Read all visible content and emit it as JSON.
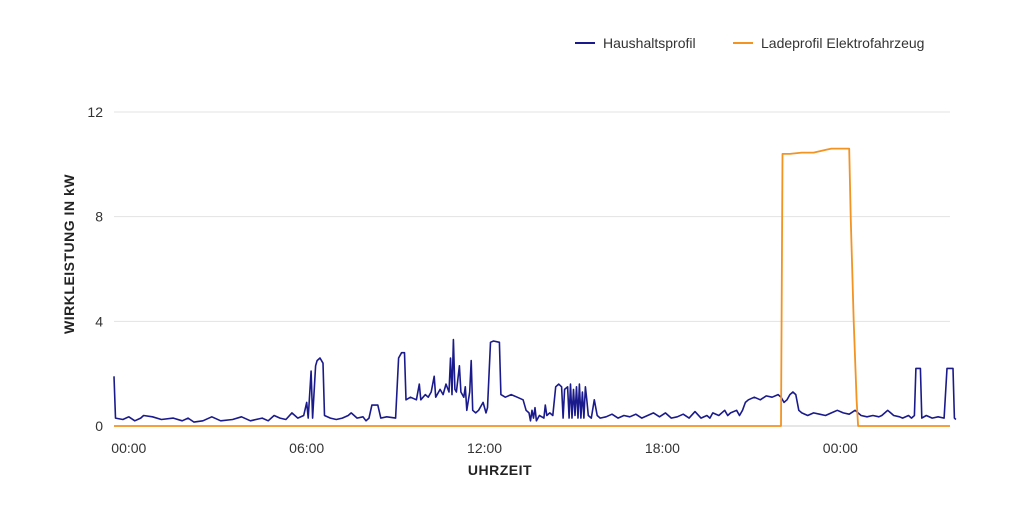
{
  "chart_data": {
    "type": "line",
    "xlabel": "UHRZEIT",
    "ylabel": "WIRKLEISTUNG IN kW",
    "xlim": [
      0,
      28.2
    ],
    "ylim": [
      0,
      12
    ],
    "yticks": [
      0,
      4,
      8,
      12
    ],
    "ytick_labels": [
      "0",
      "4",
      "8",
      "12"
    ],
    "xticks": [
      0.5,
      6.5,
      12.5,
      18.5,
      24.5
    ],
    "xtick_labels": [
      "00:00",
      "06:00",
      "12:00",
      "18:00",
      "00:00"
    ],
    "grid": true,
    "legend_position": "top-right",
    "series": [
      {
        "name": "Haushaltsprofil",
        "color": "#1a1a8c",
        "points": [
          [
            0.0,
            1.9
          ],
          [
            0.05,
            0.3
          ],
          [
            0.3,
            0.25
          ],
          [
            0.5,
            0.35
          ],
          [
            0.7,
            0.2
          ],
          [
            0.9,
            0.3
          ],
          [
            1.0,
            0.4
          ],
          [
            1.3,
            0.35
          ],
          [
            1.6,
            0.25
          ],
          [
            2.0,
            0.3
          ],
          [
            2.3,
            0.2
          ],
          [
            2.5,
            0.3
          ],
          [
            2.7,
            0.15
          ],
          [
            3.0,
            0.2
          ],
          [
            3.3,
            0.35
          ],
          [
            3.6,
            0.2
          ],
          [
            4.0,
            0.25
          ],
          [
            4.3,
            0.35
          ],
          [
            4.6,
            0.2
          ],
          [
            5.0,
            0.3
          ],
          [
            5.2,
            0.2
          ],
          [
            5.4,
            0.4
          ],
          [
            5.6,
            0.3
          ],
          [
            5.8,
            0.25
          ],
          [
            6.0,
            0.5
          ],
          [
            6.2,
            0.3
          ],
          [
            6.4,
            0.4
          ],
          [
            6.5,
            0.9
          ],
          [
            6.55,
            0.3
          ],
          [
            6.65,
            2.1
          ],
          [
            6.7,
            0.3
          ],
          [
            6.8,
            2.3
          ],
          [
            6.85,
            2.5
          ],
          [
            6.95,
            2.6
          ],
          [
            7.05,
            2.4
          ],
          [
            7.1,
            0.4
          ],
          [
            7.3,
            0.3
          ],
          [
            7.5,
            0.25
          ],
          [
            7.7,
            0.3
          ],
          [
            7.9,
            0.4
          ],
          [
            8.0,
            0.5
          ],
          [
            8.2,
            0.3
          ],
          [
            8.4,
            0.35
          ],
          [
            8.5,
            0.2
          ],
          [
            8.6,
            0.3
          ],
          [
            8.7,
            0.8
          ],
          [
            8.9,
            0.8
          ],
          [
            9.0,
            0.3
          ],
          [
            9.2,
            0.35
          ],
          [
            9.5,
            0.3
          ],
          [
            9.6,
            2.6
          ],
          [
            9.7,
            2.8
          ],
          [
            9.8,
            2.8
          ],
          [
            9.85,
            1.0
          ],
          [
            10.0,
            1.1
          ],
          [
            10.2,
            1.0
          ],
          [
            10.3,
            1.6
          ],
          [
            10.35,
            1.0
          ],
          [
            10.5,
            1.2
          ],
          [
            10.6,
            1.1
          ],
          [
            10.7,
            1.3
          ],
          [
            10.8,
            1.9
          ],
          [
            10.85,
            1.1
          ],
          [
            11.0,
            1.4
          ],
          [
            11.1,
            1.2
          ],
          [
            11.2,
            1.6
          ],
          [
            11.3,
            1.3
          ],
          [
            11.35,
            2.6
          ],
          [
            11.4,
            1.2
          ],
          [
            11.45,
            3.3
          ],
          [
            11.5,
            1.4
          ],
          [
            11.55,
            1.3
          ],
          [
            11.65,
            2.3
          ],
          [
            11.7,
            1.3
          ],
          [
            11.8,
            1.1
          ],
          [
            11.85,
            1.5
          ],
          [
            11.9,
            0.6
          ],
          [
            12.0,
            1.3
          ],
          [
            12.05,
            2.5
          ],
          [
            12.1,
            0.6
          ],
          [
            12.2,
            0.5
          ],
          [
            12.3,
            0.6
          ],
          [
            12.45,
            0.9
          ],
          [
            12.55,
            0.5
          ],
          [
            12.6,
            0.7
          ],
          [
            12.7,
            3.2
          ],
          [
            12.8,
            3.25
          ],
          [
            13.0,
            3.2
          ],
          [
            13.05,
            1.2
          ],
          [
            13.2,
            1.1
          ],
          [
            13.4,
            1.2
          ],
          [
            13.6,
            1.1
          ],
          [
            13.8,
            1.0
          ],
          [
            13.9,
            0.6
          ],
          [
            14.0,
            0.5
          ],
          [
            14.05,
            0.2
          ],
          [
            14.1,
            0.6
          ],
          [
            14.15,
            0.3
          ],
          [
            14.2,
            0.7
          ],
          [
            14.25,
            0.2
          ],
          [
            14.35,
            0.4
          ],
          [
            14.5,
            0.3
          ],
          [
            14.55,
            0.8
          ],
          [
            14.6,
            0.4
          ],
          [
            14.7,
            0.5
          ],
          [
            14.8,
            0.4
          ],
          [
            14.9,
            1.5
          ],
          [
            15.0,
            1.6
          ],
          [
            15.1,
            1.5
          ],
          [
            15.15,
            0.3
          ],
          [
            15.2,
            1.4
          ],
          [
            15.3,
            1.5
          ],
          [
            15.35,
            0.3
          ],
          [
            15.4,
            1.6
          ],
          [
            15.45,
            0.3
          ],
          [
            15.5,
            1.4
          ],
          [
            15.55,
            0.4
          ],
          [
            15.6,
            1.5
          ],
          [
            15.65,
            0.3
          ],
          [
            15.7,
            1.6
          ],
          [
            15.75,
            0.3
          ],
          [
            15.8,
            1.3
          ],
          [
            15.85,
            0.3
          ],
          [
            15.9,
            1.5
          ],
          [
            15.95,
            1.0
          ],
          [
            16.0,
            0.4
          ],
          [
            16.1,
            0.3
          ],
          [
            16.2,
            1.0
          ],
          [
            16.3,
            0.4
          ],
          [
            16.4,
            0.3
          ],
          [
            16.6,
            0.35
          ],
          [
            16.8,
            0.45
          ],
          [
            17.0,
            0.3
          ],
          [
            17.2,
            0.4
          ],
          [
            17.4,
            0.35
          ],
          [
            17.6,
            0.45
          ],
          [
            17.8,
            0.3
          ],
          [
            18.0,
            0.4
          ],
          [
            18.2,
            0.5
          ],
          [
            18.4,
            0.35
          ],
          [
            18.6,
            0.5
          ],
          [
            18.8,
            0.3
          ],
          [
            19.0,
            0.35
          ],
          [
            19.2,
            0.45
          ],
          [
            19.4,
            0.3
          ],
          [
            19.6,
            0.55
          ],
          [
            19.8,
            0.3
          ],
          [
            20.0,
            0.4
          ],
          [
            20.1,
            0.3
          ],
          [
            20.2,
            0.5
          ],
          [
            20.4,
            0.4
          ],
          [
            20.6,
            0.6
          ],
          [
            20.7,
            0.4
          ],
          [
            20.8,
            0.5
          ],
          [
            21.0,
            0.6
          ],
          [
            21.1,
            0.4
          ],
          [
            21.2,
            0.6
          ],
          [
            21.3,
            0.9
          ],
          [
            21.4,
            1.0
          ],
          [
            21.6,
            1.1
          ],
          [
            21.8,
            1.0
          ],
          [
            22.0,
            1.15
          ],
          [
            22.2,
            1.1
          ],
          [
            22.4,
            1.2
          ],
          [
            22.5,
            1.1
          ],
          [
            22.6,
            0.9
          ],
          [
            22.7,
            1.0
          ],
          [
            22.8,
            1.2
          ],
          [
            22.9,
            1.3
          ],
          [
            23.0,
            1.2
          ],
          [
            23.1,
            0.6
          ],
          [
            23.2,
            0.5
          ],
          [
            23.4,
            0.4
          ],
          [
            23.6,
            0.5
          ],
          [
            23.8,
            0.45
          ],
          [
            24.0,
            0.4
          ],
          [
            24.2,
            0.5
          ],
          [
            24.4,
            0.6
          ],
          [
            24.6,
            0.5
          ],
          [
            24.8,
            0.45
          ],
          [
            25.0,
            0.6
          ],
          [
            25.2,
            0.4
          ],
          [
            25.4,
            0.35
          ],
          [
            25.6,
            0.4
          ],
          [
            25.8,
            0.35
          ],
          [
            25.9,
            0.4
          ],
          [
            26.0,
            0.5
          ],
          [
            26.1,
            0.6
          ],
          [
            26.2,
            0.5
          ],
          [
            26.3,
            0.4
          ],
          [
            26.5,
            0.35
          ],
          [
            26.6,
            0.3
          ],
          [
            26.8,
            0.4
          ],
          [
            26.9,
            0.3
          ],
          [
            27.0,
            0.4
          ],
          [
            27.05,
            2.2
          ],
          [
            27.2,
            2.2
          ],
          [
            27.25,
            0.3
          ],
          [
            27.4,
            0.4
          ],
          [
            27.6,
            0.3
          ],
          [
            27.8,
            0.35
          ],
          [
            28.0,
            0.3
          ],
          [
            28.1,
            2.2
          ],
          [
            28.3,
            2.2
          ],
          [
            28.35,
            0.3
          ],
          [
            28.4,
            0.25
          ]
        ]
      },
      {
        "name": "Ladeprofil Elektrofahrzeug",
        "color": "#f29322",
        "points": [
          [
            0.0,
            0.0
          ],
          [
            22.5,
            0.0
          ],
          [
            22.55,
            10.4
          ],
          [
            22.8,
            10.4
          ],
          [
            23.2,
            10.45
          ],
          [
            23.6,
            10.45
          ],
          [
            23.8,
            10.5
          ],
          [
            24.0,
            10.55
          ],
          [
            24.2,
            10.6
          ],
          [
            24.5,
            10.6
          ],
          [
            24.8,
            10.6
          ],
          [
            24.85,
            8.0
          ],
          [
            24.95,
            4.0
          ],
          [
            25.05,
            1.0
          ],
          [
            25.1,
            0.0
          ],
          [
            28.2,
            0.0
          ]
        ]
      }
    ]
  }
}
